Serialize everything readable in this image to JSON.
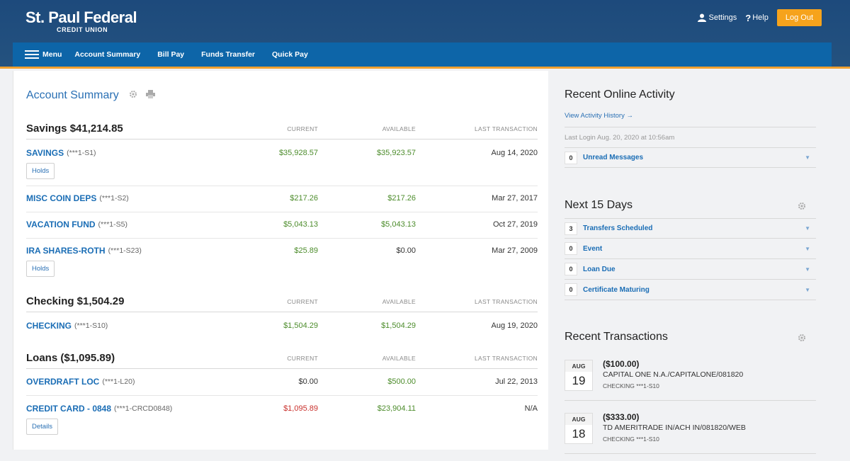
{
  "header": {
    "brand_name": "St. Paul Federal",
    "brand_sub": "CREDIT UNION",
    "settings_label": "Settings",
    "help_label": "Help",
    "logout_label": "Log Out"
  },
  "nav": {
    "menu_label": "Menu",
    "items": [
      "Account Summary",
      "Bill Pay",
      "Funds Transfer",
      "Quick Pay"
    ]
  },
  "summary": {
    "title": "Account Summary",
    "col_current": "CURRENT",
    "col_available": "AVAILABLE",
    "col_last": "LAST TRANSACTION",
    "groups": [
      {
        "title": "Savings $41,214.85",
        "accounts": [
          {
            "name": "SAVINGS",
            "mask": "(***1-S1)",
            "current": "$35,928.57",
            "available": "$35,923.57",
            "last": "Aug 14, 2020",
            "button": "Holds"
          },
          {
            "name": "MISC COIN DEPS",
            "mask": "(***1-S2)",
            "current": "$217.26",
            "available": "$217.26",
            "last": "Mar 27, 2017"
          },
          {
            "name": "VACATION FUND",
            "mask": "(***1-S5)",
            "current": "$5,043.13",
            "available": "$5,043.13",
            "last": "Oct 27, 2019"
          },
          {
            "name": "IRA SHARES-ROTH",
            "mask": "(***1-S23)",
            "current": "$25.89",
            "available": "$0.00",
            "last": "Mar 27, 2009",
            "button": "Holds"
          }
        ]
      },
      {
        "title": "Checking $1,504.29",
        "accounts": [
          {
            "name": "CHECKING",
            "mask": "(***1-S10)",
            "current": "$1,504.29",
            "available": "$1,504.29",
            "last": "Aug 19, 2020"
          }
        ]
      },
      {
        "title": "Loans ($1,095.89)",
        "accounts": [
          {
            "name": "OVERDRAFT LOC",
            "mask": "(***1-L20)",
            "current": "$0.00",
            "available": "$500.00",
            "last": "Jul 22, 2013"
          },
          {
            "name": "CREDIT CARD - 0848",
            "mask": "(***1-CRCD0848)",
            "current": "$1,095.89",
            "available": "$23,904.11",
            "last": "N/A",
            "button": "Details"
          }
        ]
      }
    ]
  },
  "activity": {
    "title": "Recent Online Activity",
    "history_link": "View Activity History →",
    "last_login": "Last Login Aug. 20, 2020 at 10:56am",
    "unread_count": "0",
    "unread_label": "Unread Messages"
  },
  "next15": {
    "title": "Next 15 Days",
    "rows": [
      {
        "count": "3",
        "label": "Transfers Scheduled"
      },
      {
        "count": "0",
        "label": "Event"
      },
      {
        "count": "0",
        "label": "Loan Due"
      },
      {
        "count": "0",
        "label": "Certificate Maturing"
      }
    ]
  },
  "recent_txns": {
    "title": "Recent Transactions",
    "items": [
      {
        "month": "AUG",
        "day": "19",
        "amount": "($100.00)",
        "desc": "CAPITAL ONE N.A./CAPITALONE/081820",
        "account": "CHECKING ***1-S10"
      },
      {
        "month": "AUG",
        "day": "18",
        "amount": "($333.00)",
        "desc": "TD AMERITRADE IN/ACH IN/081820/WEB",
        "account": "CHECKING ***1-S10"
      }
    ]
  },
  "colors": {
    "header_bg": "#1d4a7c",
    "nav_bg": "#0d65a8",
    "accent_orange": "#f6a31c",
    "link_blue": "#1a6db5",
    "positive_green": "#4c8c2b",
    "negative_red": "#c9302c"
  }
}
